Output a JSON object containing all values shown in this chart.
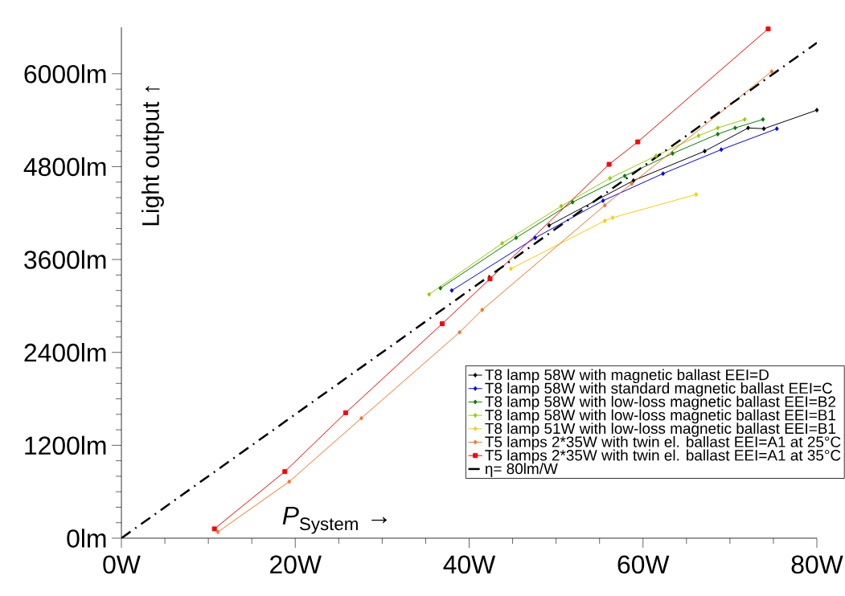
{
  "chart_data": {
    "type": "line",
    "xlabel": "*P*$_{System}$ →",
    "ylabel": "Light output ↑",
    "xlim": [
      0,
      80
    ],
    "ylim": [
      0,
      6600
    ],
    "xticks": [
      {
        "value": 0,
        "label": "0W"
      },
      {
        "value": 20,
        "label": "20W"
      },
      {
        "value": 40,
        "label": "40W"
      },
      {
        "value": 60,
        "label": "60W"
      },
      {
        "value": 80,
        "label": "80W"
      }
    ],
    "yticks": [
      {
        "value": 0,
        "label": "0lm"
      },
      {
        "value": 1200,
        "label": "1200lm"
      },
      {
        "value": 2400,
        "label": "2400lm"
      },
      {
        "value": 3600,
        "label": "3600lm"
      },
      {
        "value": 4800,
        "label": "4800lm"
      },
      {
        "value": 6000,
        "label": "6000lm"
      }
    ],
    "legend": "bottom right",
    "grid": false,
    "series": [
      {
        "name": "T8 lamp 58W with magnetic ballast EEI=D",
        "color": "#000000",
        "marker": "diamond",
        "line_style": "solid",
        "x": [
          49.2,
          58.9,
          67.1,
          72.1,
          73.9,
          80
        ],
        "values": [
          4040,
          4620,
          5000,
          5300,
          5290,
          5530
        ]
      },
      {
        "name": "T8 lamp 58W with standard magnetic ballast EEI=C",
        "color": "#0000ff",
        "marker": "diamond",
        "line_style": "solid",
        "x": [
          38.0,
          47.6,
          55.4,
          62.3,
          69.0,
          75.4
        ],
        "values": [
          3200,
          3880,
          4360,
          4710,
          5020,
          5290
        ]
      },
      {
        "name": "T8 lamp 58W with low-loss magnetic ballast EEI=B2",
        "color": "#008000",
        "marker": "diamond",
        "line_style": "solid",
        "x": [
          36.7,
          45.4,
          51.9,
          57.9,
          63.4,
          68.6,
          70.6,
          73.8
        ],
        "values": [
          3230,
          3880,
          4340,
          4680,
          4970,
          5220,
          5300,
          5410
        ]
      },
      {
        "name": "T8 lamp 58W with low-loss magnetic ballast EEI=B1",
        "color": "#99cc00",
        "marker": "diamond",
        "line_style": "solid",
        "x": [
          35.4,
          43.8,
          50.6,
          56.2,
          61.5,
          66.4,
          68.6,
          71.7
        ],
        "values": [
          3150,
          3810,
          4290,
          4650,
          4940,
          5200,
          5300,
          5410
        ]
      },
      {
        "name": "T8 lamp 51W with low-loss magnetic ballast EEI=B1",
        "color": "#ffcc00",
        "marker": "diamond",
        "line_style": "solid",
        "x": [
          44.8,
          55.6,
          56.5,
          66.1
        ],
        "values": [
          3480,
          4100,
          4140,
          4440
        ]
      },
      {
        "name": "T5 lamps 2*35W with twin el. ballast EEI=A1 at 25°C",
        "color": "#ff7020",
        "marker": "diamond",
        "line_style": "solid",
        "x": [
          11.1,
          19.3,
          27.6,
          38.9,
          41.5,
          55.6,
          58.7,
          74.8
        ],
        "values": [
          80,
          730,
          1550,
          2660,
          2950,
          4300,
          4580,
          6030
        ]
      },
      {
        "name": "T5 lamps 2*35W with twin el. ballast EEI=A1 at 35°C",
        "color": "#ff0000",
        "marker": "square",
        "line_style": "solid",
        "x": [
          10.7,
          18.8,
          25.8,
          36.9,
          42.4,
          56.1,
          59.4,
          74.4
        ],
        "values": [
          120,
          860,
          1620,
          2770,
          3350,
          4830,
          5120,
          6580
        ]
      },
      {
        "name": "η= 80lm/W",
        "color": "#000000",
        "marker": "none",
        "line_style": "dashdot",
        "x": [
          0,
          80
        ],
        "values": [
          0,
          6400
        ]
      }
    ]
  }
}
